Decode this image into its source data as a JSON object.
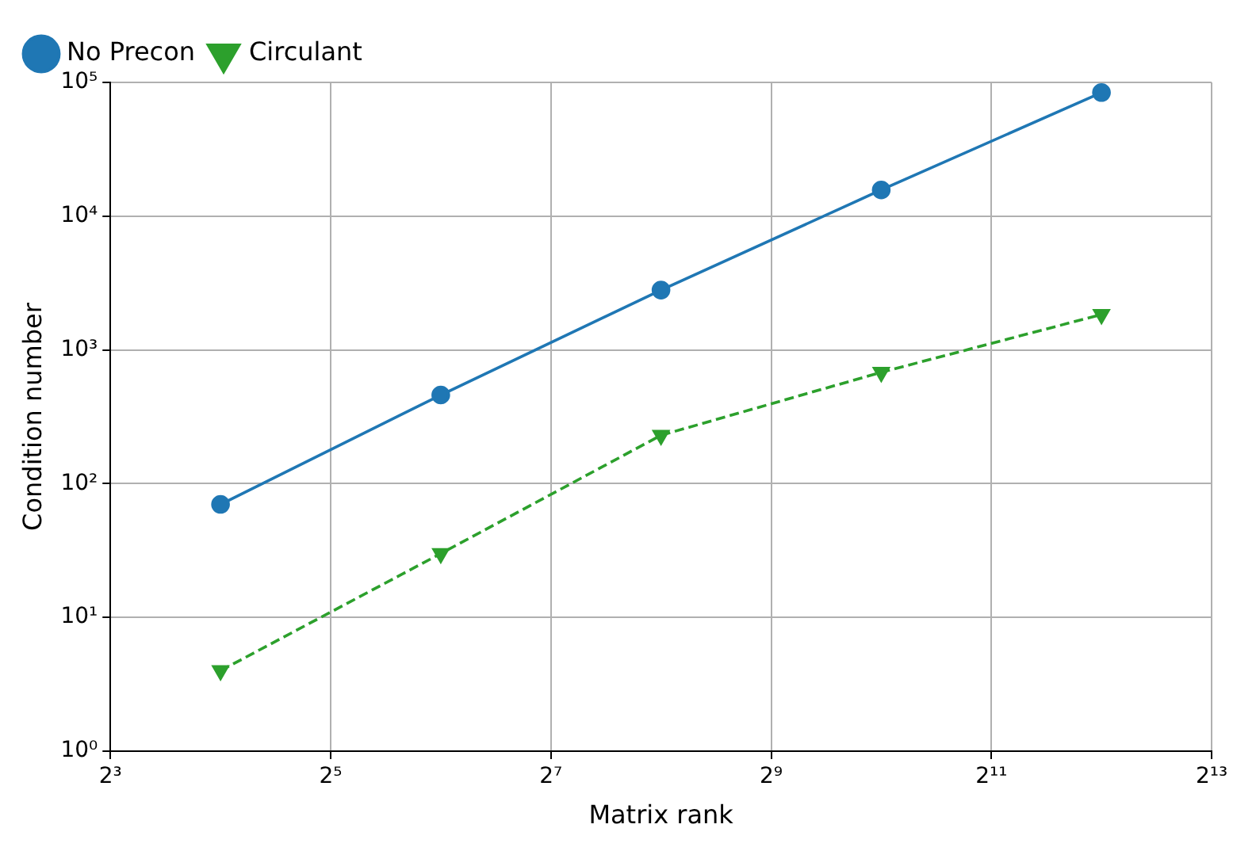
{
  "chart_data": {
    "type": "line",
    "xlabel": "Matrix rank",
    "ylabel": "Condition number",
    "x": [
      16,
      64,
      256,
      1024,
      4096
    ],
    "series": [
      {
        "name": "No Precon",
        "color": "#1f77b4",
        "values": [
          70,
          460,
          2800,
          15700,
          84000
        ],
        "marker": "circle",
        "line_style": "solid"
      },
      {
        "name": "Circulant",
        "color": "#2ca02c",
        "values": [
          4,
          30,
          230,
          680,
          1840
        ],
        "marker": "triangle",
        "line_style": "dashed"
      }
    ],
    "log": "xy",
    "xlim": [
      8,
      8192
    ],
    "ylim": [
      1,
      100000
    ],
    "xticks": [
      {
        "value": 8,
        "label": "2³"
      },
      {
        "value": 32,
        "label": "2⁵"
      },
      {
        "value": 128,
        "label": "2⁷"
      },
      {
        "value": 512,
        "label": "2⁹"
      },
      {
        "value": 2048,
        "label": "2¹¹"
      },
      {
        "value": 8192,
        "label": "2¹³"
      }
    ],
    "yticks": [
      {
        "value": 1,
        "label": "10⁰"
      },
      {
        "value": 10,
        "label": "10¹"
      },
      {
        "value": 100,
        "label": "10²"
      },
      {
        "value": 1000,
        "label": "10³"
      },
      {
        "value": 10000,
        "label": "10⁴"
      },
      {
        "value": 100000,
        "label": "10⁵"
      }
    ],
    "grid": true,
    "legend": "top left"
  }
}
